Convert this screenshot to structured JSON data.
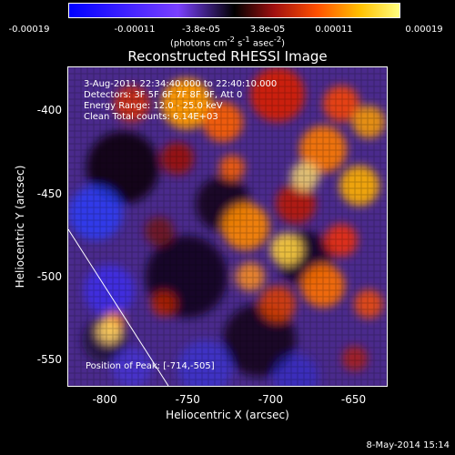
{
  "colorbar": {
    "ticks": [
      "-0.00019",
      "-0.00011",
      "-3.8e-05",
      "3.8e-05",
      "0.00011",
      "0.00019"
    ],
    "units_main": "(photons cm",
    "units_exp1": "-2",
    "units_mid": " s",
    "units_exp2": "-1",
    "units_end": " asec",
    "units_exp3": "-2",
    "units_close": ")",
    "colors": {
      "low": "#0000ff",
      "mid_low": "#7a40ff",
      "mid": "#000000",
      "high": "#ffff80"
    }
  },
  "title": "Reconstructed RHESSI Image",
  "info": {
    "time": "3-Aug-2011 22:34:40.000 to 22:40:10.000",
    "detectors": "Detectors: 3F 5F 6F 7F 8F 9F, Att 0",
    "energy": "Energy Range: 12.0 - 25.0 keV",
    "clean": "Clean     Total counts: 6.14E+03",
    "peak": "Position of Peak: [-714,-505]"
  },
  "axes": {
    "xlabel": "Heliocentric X (arcsec)",
    "ylabel": "Heliocentric Y (arcsec)",
    "xlim": [
      -822,
      -630
    ],
    "ylim": [
      -566,
      -374
    ],
    "xticks": [
      {
        "value": -800,
        "label": "-800"
      },
      {
        "value": -750,
        "label": "-750"
      },
      {
        "value": -700,
        "label": "-700"
      },
      {
        "value": -650,
        "label": "-650"
      }
    ],
    "yticks": [
      {
        "value": -400,
        "label": "-400"
      },
      {
        "value": -450,
        "label": "-450"
      },
      {
        "value": -500,
        "label": "-500"
      },
      {
        "value": -550,
        "label": "-550"
      }
    ]
  },
  "footer": "8-May-2014 15:14"
}
